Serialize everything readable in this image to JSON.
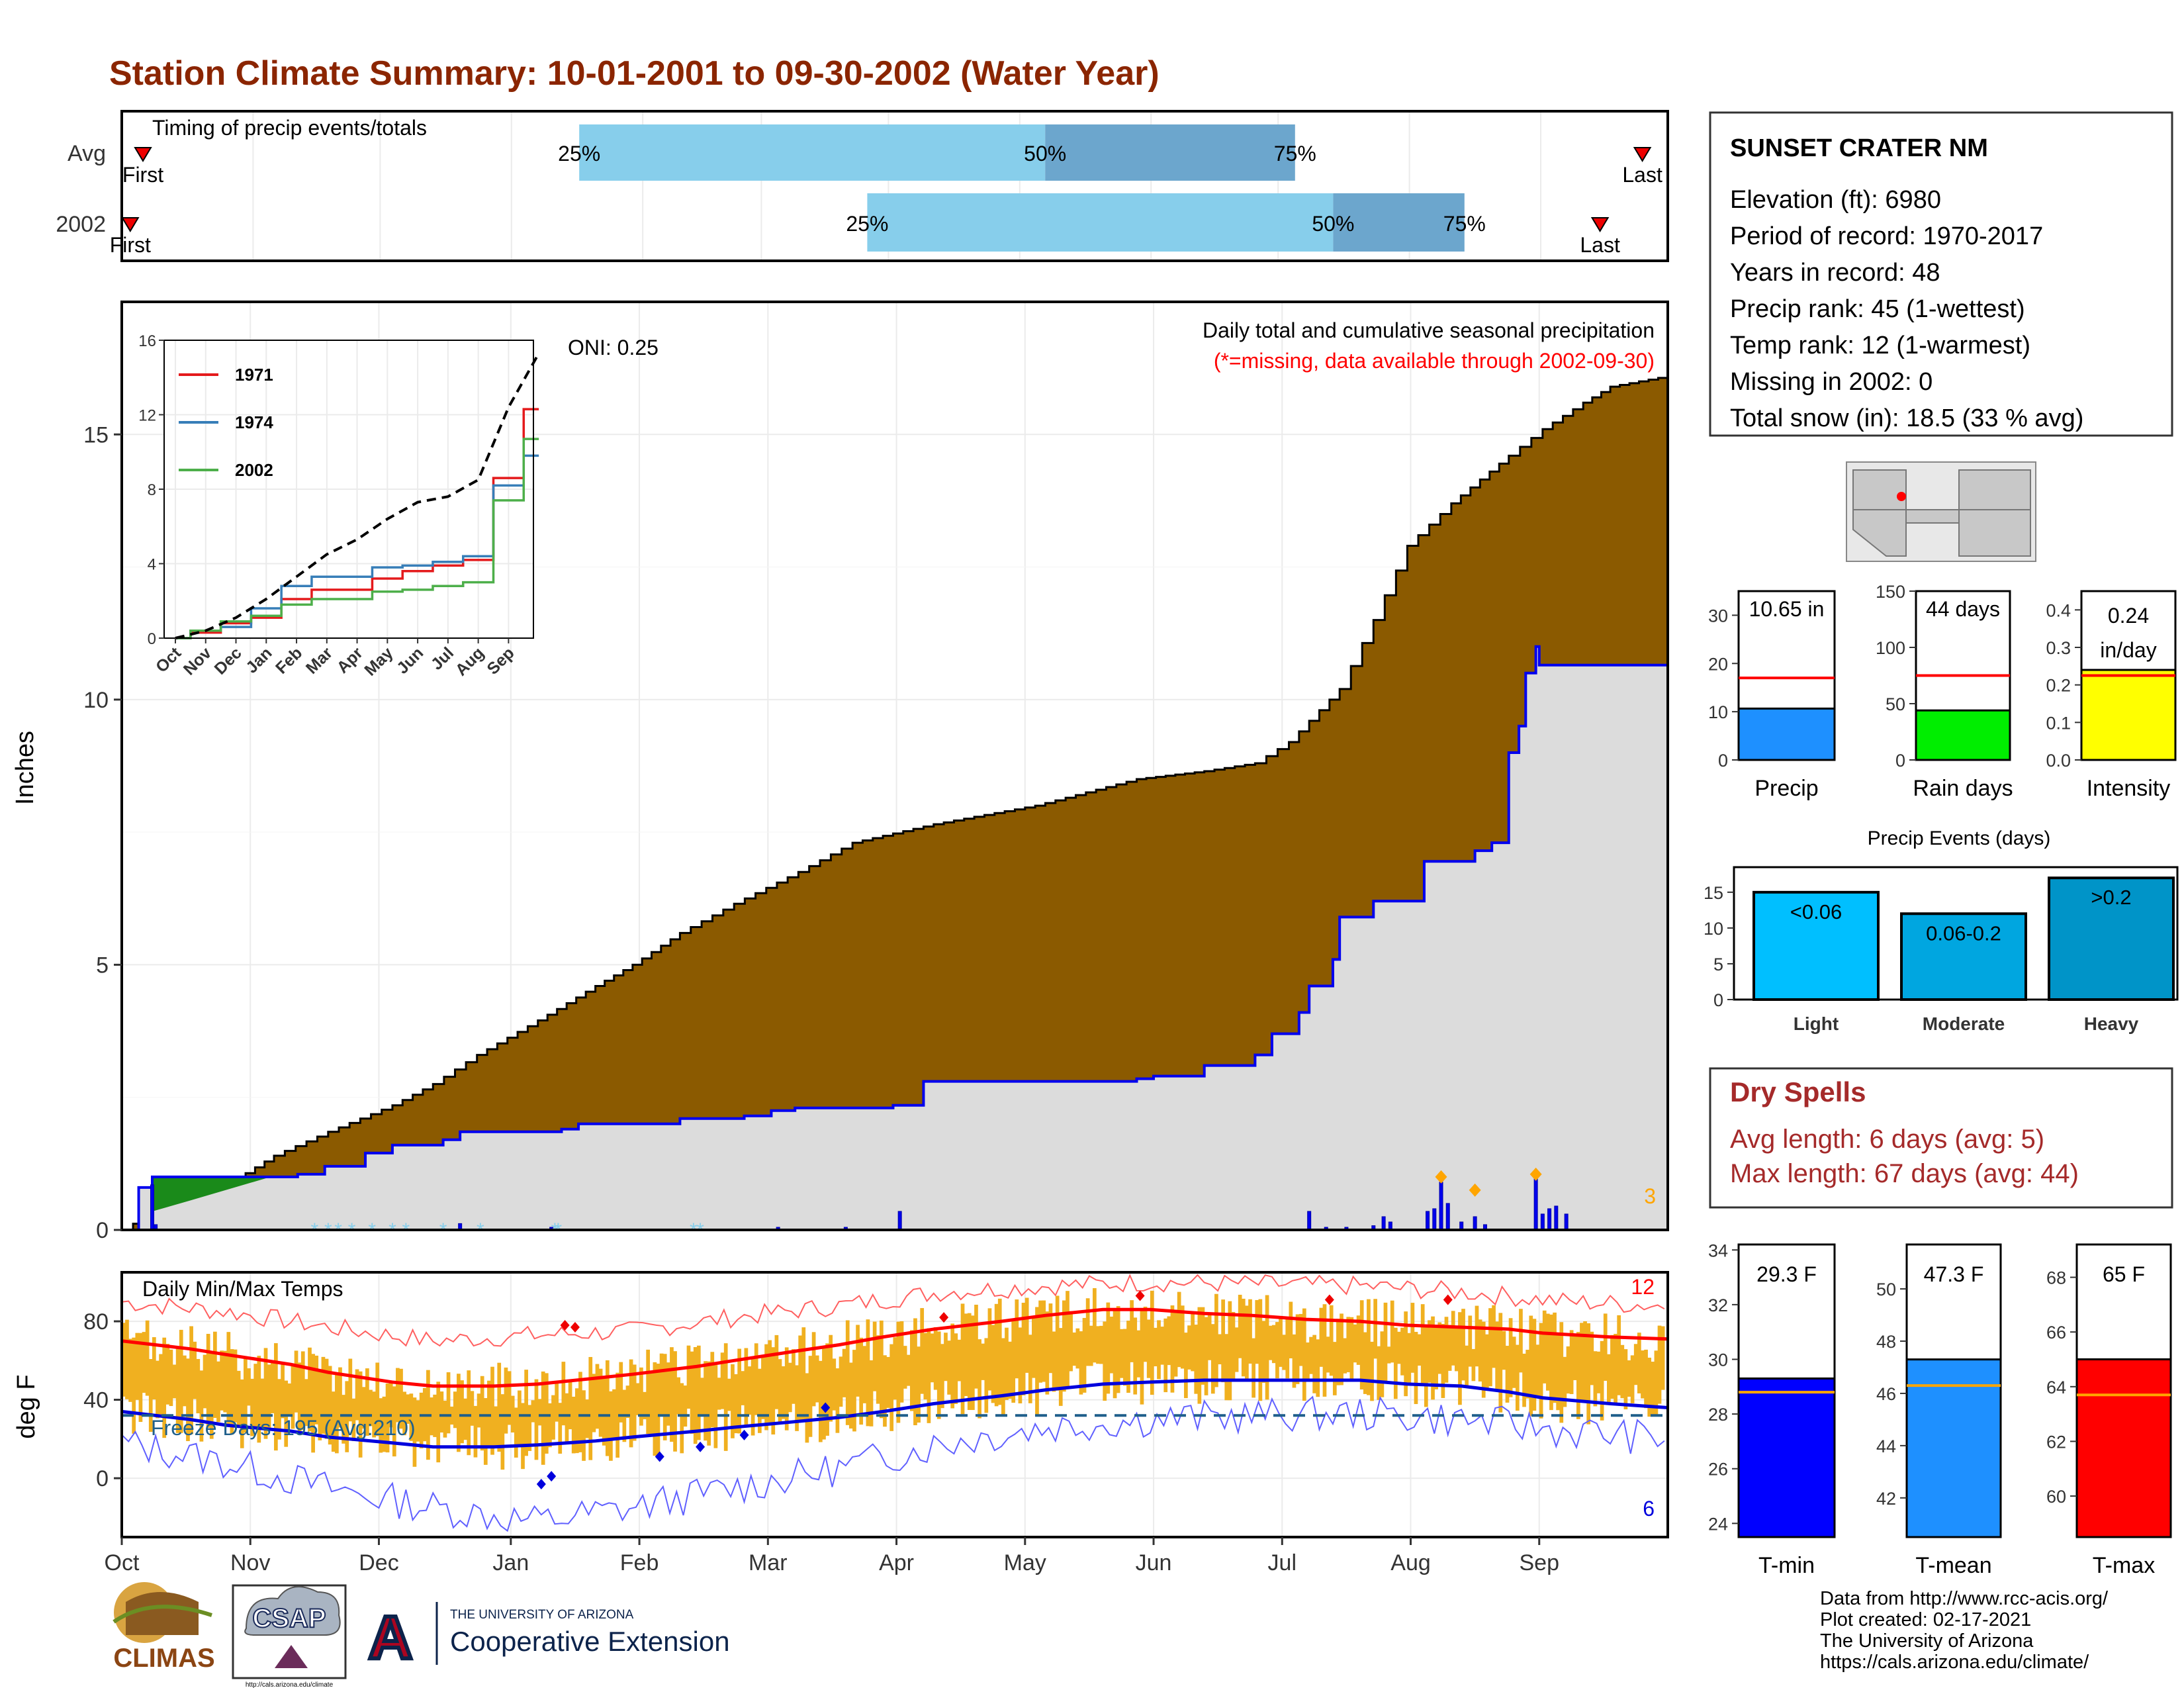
{
  "page": {
    "title": "Station Climate Summary: 10-01-2001 to 09-30-2002 (Water Year)",
    "colors": {
      "title": "#8b2500",
      "cum_fill": "#8b5a00",
      "current_fill": "#dcdcdc",
      "current_line": "#0000ee",
      "quartile_light": "#87ceeb",
      "quartile_dark": "#6ca6cd",
      "normal_line": "#ff0000",
      "freeze_line": "#1f5f8b",
      "tmax_band": "#f0b020",
      "dry_text": "#a52a2a"
    }
  },
  "chart_data": [
    {
      "id": "timing",
      "type": "range",
      "title": "Timing of precip events/totals",
      "rows": [
        {
          "label": "Avg",
          "first": "First",
          "last": "Last",
          "first_day": 5,
          "last_day": 359,
          "q25_day": 108,
          "q50_day": 218,
          "q75_day": 277
        },
        {
          "label": "2002",
          "first": "First",
          "last": "Last",
          "first_day": 2,
          "last_day": 349,
          "q25_day": 176,
          "q50_day": 286,
          "q75_day": 317
        }
      ],
      "pct_labels": [
        "25%",
        "50%",
        "75%"
      ]
    },
    {
      "id": "precip_main",
      "type": "area",
      "ylabel": "Inches",
      "yticks": [
        0,
        5,
        10,
        15
      ],
      "ylim": [
        0,
        17.5
      ],
      "xlim_days": [
        0,
        365
      ],
      "annotation_title": "Daily total and cumulative seasonal precipitation",
      "annotation_missing": "(*=missing, data available through 2002-09-30)",
      "oni": "ONI: 0.25",
      "extreme_count": "3",
      "avg_cumulative": [
        [
          0,
          0
        ],
        [
          10,
          0.35
        ],
        [
          20,
          0.55
        ],
        [
          31,
          0.85
        ],
        [
          45,
          1.4
        ],
        [
          61,
          1.85
        ],
        [
          80,
          2.35
        ],
        [
          92,
          2.75
        ],
        [
          105,
          3.3
        ],
        [
          123,
          3.95
        ],
        [
          140,
          4.6
        ],
        [
          151,
          5.0
        ],
        [
          165,
          5.6
        ],
        [
          181,
          6.15
        ],
        [
          200,
          6.75
        ],
        [
          216,
          7.3
        ],
        [
          240,
          7.65
        ],
        [
          270,
          8.0
        ],
        [
          300,
          8.5
        ],
        [
          320,
          8.65
        ],
        [
          335,
          8.8
        ],
        [
          345,
          9.2
        ],
        [
          360,
          10.2
        ],
        [
          370,
          11.5
        ],
        [
          380,
          12.9
        ],
        [
          393,
          13.7
        ],
        [
          410,
          14.6
        ],
        [
          420,
          15.1
        ],
        [
          432,
          15.6
        ],
        [
          440,
          15.9
        ],
        [
          457,
          16.1
        ]
      ],
      "current_cumulative": [
        [
          0,
          0
        ],
        [
          5,
          0.8
        ],
        [
          9,
          1.0
        ],
        [
          50,
          1.0
        ],
        [
          52,
          1.05
        ],
        [
          60,
          1.2
        ],
        [
          65,
          1.2
        ],
        [
          72,
          1.45
        ],
        [
          80,
          1.6
        ],
        [
          95,
          1.7
        ],
        [
          100,
          1.85
        ],
        [
          130,
          1.9
        ],
        [
          135,
          2.0
        ],
        [
          165,
          2.1
        ],
        [
          184,
          2.15
        ],
        [
          192,
          2.25
        ],
        [
          199,
          2.3
        ],
        [
          228,
          2.35
        ],
        [
          235,
          2.35
        ],
        [
          237,
          2.8
        ],
        [
          300,
          2.85
        ],
        [
          305,
          2.9
        ],
        [
          320,
          3.1
        ],
        [
          335,
          3.3
        ],
        [
          340,
          3.7
        ],
        [
          348,
          4.1
        ],
        [
          351,
          4.6
        ],
        [
          358,
          5.1
        ],
        [
          360,
          5.9
        ],
        [
          370,
          6.2
        ],
        [
          385,
          6.95
        ],
        [
          400,
          7.15
        ],
        [
          405,
          7.3
        ],
        [
          410,
          9.0
        ],
        [
          413,
          9.5
        ],
        [
          415,
          10.5
        ],
        [
          418,
          11.0
        ],
        [
          419,
          10.65
        ],
        [
          457,
          10.65
        ]
      ],
      "daily_bars": [
        [
          9,
          0.85
        ],
        [
          10,
          0.1
        ],
        [
          100,
          0.12
        ],
        [
          127,
          0.05
        ],
        [
          194,
          0.05
        ],
        [
          214,
          0.05
        ],
        [
          230,
          0.35
        ],
        [
          351,
          0.35
        ],
        [
          356,
          0.05
        ],
        [
          362,
          0.05
        ],
        [
          370,
          0.08
        ],
        [
          373,
          0.25
        ],
        [
          375,
          0.15
        ],
        [
          386,
          0.35
        ],
        [
          388,
          0.4
        ],
        [
          390,
          0.9
        ],
        [
          392,
          0.5
        ],
        [
          396,
          0.15
        ],
        [
          400,
          0.25
        ],
        [
          403,
          0.1
        ],
        [
          418,
          1.0
        ],
        [
          420,
          0.3
        ],
        [
          422,
          0.4
        ],
        [
          424,
          0.45
        ],
        [
          427,
          0.3
        ]
      ],
      "series": [
        {
          "name": "1971"
        },
        {
          "name": "1974"
        },
        {
          "name": "2002"
        }
      ]
    },
    {
      "id": "inset",
      "type": "line",
      "yticks": [
        0,
        4,
        8,
        12,
        16
      ],
      "ylim": [
        0,
        16
      ],
      "months": [
        "Oct",
        "Nov",
        "Dec",
        "Jan",
        "Feb",
        "Mar",
        "Apr",
        "May",
        "Jun",
        "Jul",
        "Aug",
        "Sep"
      ],
      "series": [
        {
          "name": "1971",
          "color": "#e41a1c",
          "values": [
            0.3,
            0.8,
            1.1,
            2.1,
            2.6,
            2.6,
            3.2,
            3.6,
            3.9,
            4.2,
            8.6,
            12.3
          ]
        },
        {
          "name": "1974",
          "color": "#377eb8",
          "values": [
            0.4,
            0.6,
            1.6,
            2.8,
            3.3,
            3.3,
            3.8,
            3.9,
            4.1,
            4.4,
            8.2,
            9.8
          ]
        },
        {
          "name": "2002",
          "color": "#4daf4a",
          "values": [
            0.4,
            0.9,
            1.2,
            1.8,
            2.1,
            2.1,
            2.5,
            2.6,
            2.8,
            3.0,
            7.4,
            10.7
          ]
        },
        {
          "name": "avg",
          "color": "#000000",
          "values": [
            0.4,
            1.1,
            2.1,
            3.3,
            4.5,
            5.3,
            6.4,
            7.3,
            7.6,
            8.5,
            12.4,
            15.3
          ]
        }
      ]
    },
    {
      "id": "temps",
      "type": "line",
      "ylabel": "deg F",
      "title": "Daily Min/Max Temps",
      "yticks": [
        0,
        40,
        80
      ],
      "ylim": [
        -30,
        105
      ],
      "freeze_label": "Freeze Days: 195 (Avg:210)",
      "freeze_line": 32,
      "hi_count": "12",
      "lo_count": "6",
      "tmax_normal": [
        [
          0,
          70
        ],
        [
          20,
          66
        ],
        [
          31,
          63
        ],
        [
          50,
          58
        ],
        [
          61,
          54
        ],
        [
          80,
          49
        ],
        [
          92,
          47
        ],
        [
          110,
          47
        ],
        [
          123,
          48
        ],
        [
          140,
          51
        ],
        [
          151,
          53
        ],
        [
          170,
          57
        ],
        [
          181,
          60
        ],
        [
          200,
          65
        ],
        [
          212,
          68
        ],
        [
          225,
          72
        ],
        [
          240,
          76
        ],
        [
          260,
          80
        ],
        [
          273,
          83
        ],
        [
          290,
          86
        ],
        [
          304,
          86
        ],
        [
          320,
          84
        ],
        [
          334,
          83
        ],
        [
          350,
          81
        ],
        [
          366,
          80
        ],
        [
          380,
          78
        ],
        [
          396,
          77
        ],
        [
          410,
          76
        ],
        [
          420,
          74
        ],
        [
          440,
          72
        ],
        [
          457,
          71
        ]
      ],
      "tmin_normal": [
        [
          0,
          34
        ],
        [
          20,
          30
        ],
        [
          31,
          27
        ],
        [
          50,
          24
        ],
        [
          61,
          21
        ],
        [
          80,
          18
        ],
        [
          92,
          16
        ],
        [
          110,
          16
        ],
        [
          123,
          17
        ],
        [
          140,
          19
        ],
        [
          151,
          21
        ],
        [
          170,
          24
        ],
        [
          181,
          26
        ],
        [
          200,
          29
        ],
        [
          212,
          31
        ],
        [
          225,
          34
        ],
        [
          240,
          38
        ],
        [
          260,
          42
        ],
        [
          273,
          45
        ],
        [
          290,
          48
        ],
        [
          304,
          49
        ],
        [
          320,
          50
        ],
        [
          334,
          50
        ],
        [
          350,
          50
        ],
        [
          366,
          50
        ],
        [
          380,
          48
        ],
        [
          396,
          47
        ],
        [
          410,
          44
        ],
        [
          420,
          41
        ],
        [
          440,
          38
        ],
        [
          457,
          36
        ]
      ],
      "tmax_record": [
        [
          0,
          90
        ],
        [
          31,
          85
        ],
        [
          61,
          77
        ],
        [
          92,
          70
        ],
        [
          123,
          73
        ],
        [
          151,
          75
        ],
        [
          181,
          82
        ],
        [
          212,
          88
        ],
        [
          243,
          95
        ],
        [
          273,
          98
        ],
        [
          304,
          100
        ],
        [
          335,
          99
        ],
        [
          366,
          98
        ],
        [
          396,
          95
        ],
        [
          427,
          90
        ],
        [
          457,
          88
        ]
      ],
      "tmin_record": [
        [
          0,
          18
        ],
        [
          31,
          8
        ],
        [
          61,
          -5
        ],
        [
          92,
          -15
        ],
        [
          123,
          -22
        ],
        [
          151,
          -15
        ],
        [
          181,
          -5
        ],
        [
          212,
          5
        ],
        [
          243,
          18
        ],
        [
          273,
          26
        ],
        [
          304,
          30
        ],
        [
          335,
          32
        ],
        [
          366,
          33
        ],
        [
          396,
          30
        ],
        [
          427,
          24
        ],
        [
          457,
          20
        ]
      ]
    },
    {
      "id": "stats_bars",
      "type": "bar",
      "items": [
        {
          "label": "Precip",
          "value": 10.65,
          "value_label": "10.65 in",
          "normal": 17,
          "yticks": [
            0,
            10,
            20,
            30
          ],
          "ylim": [
            0,
            35
          ],
          "color": "#1e90ff"
        },
        {
          "label": "Rain days",
          "value": 44,
          "value_label": "44 days",
          "normal": 75,
          "yticks": [
            0,
            50,
            100,
            150
          ],
          "ylim": [
            0,
            150
          ],
          "color": "#00ee00"
        },
        {
          "label": "Intensity",
          "value": 0.24,
          "value_label": "0.24",
          "value_label2": "in/day",
          "normal": 0.225,
          "yticks": [
            0.0,
            0.1,
            0.2,
            0.3,
            0.4
          ],
          "ylim": [
            0,
            0.45
          ],
          "color": "#ffff00"
        }
      ]
    },
    {
      "id": "precip_events",
      "type": "bar",
      "title": "Precip Events (days)",
      "categories": [
        "Light",
        "Moderate",
        "Heavy"
      ],
      "values": [
        15,
        12,
        17
      ],
      "bar_labels": [
        "<0.06",
        "0.06-0.2",
        ">0.2"
      ],
      "colors": [
        "#00bfff",
        "#00a6e0",
        "#0094c8"
      ],
      "yticks": [
        0,
        5,
        10,
        15
      ],
      "ylim": [
        0,
        18.5
      ]
    },
    {
      "id": "temp_bars",
      "type": "bar",
      "items": [
        {
          "label": "T-min",
          "value": 29.3,
          "value_label": "29.3 F",
          "normal": 28.8,
          "yticks": [
            24,
            26,
            28,
            30,
            32,
            34
          ],
          "ylim": [
            23.5,
            34.2
          ],
          "color": "#0000ff"
        },
        {
          "label": "T-mean",
          "value": 47.3,
          "value_label": "47.3 F",
          "normal": 46.3,
          "yticks": [
            42,
            44,
            46,
            48,
            50
          ],
          "ylim": [
            40.5,
            51.7
          ],
          "color": "#1e90ff"
        },
        {
          "label": "T-max",
          "value": 65,
          "value_label": "65 F",
          "normal": 63.7,
          "yticks": [
            60,
            62,
            64,
            66,
            68
          ],
          "ylim": [
            58.5,
            69.2
          ],
          "color": "#ff0000"
        }
      ]
    }
  ],
  "x_months": [
    "Oct",
    "Nov",
    "Dec",
    "Jan",
    "Feb",
    "Mar",
    "Apr",
    "May",
    "Jun",
    "Jul",
    "Aug",
    "Sep"
  ],
  "station": {
    "name": "SUNSET CRATER NM",
    "lines": [
      "Elevation (ft): 6980",
      "Period of record: 1970-2017",
      "Years in record: 48",
      "Precip rank: 45 (1-wettest)",
      "Temp rank: 12 (1-warmest)",
      "Missing in 2002: 0",
      "Total snow (in): 18.5 (33 % avg)"
    ]
  },
  "dry_spells": {
    "title": "Dry Spells",
    "avg": "Avg length: 6 days (avg: 5)",
    "max": "Max length: 67 days (avg: 44)"
  },
  "footer": {
    "lines": [
      "Data from http://www.rcc-acis.org/",
      "Plot created: 02-17-2021",
      "The University of Arizona",
      "https://cals.arizona.edu/climate/"
    ]
  },
  "logos": {
    "climas": "CLIMAS",
    "csap": "CSAP",
    "csap_url": "http://cals.arizona.edu/climate",
    "ua_small": "THE UNIVERSITY OF ARIZONA",
    "coop": "Cooperative Extension",
    "ua_letter": "A"
  }
}
